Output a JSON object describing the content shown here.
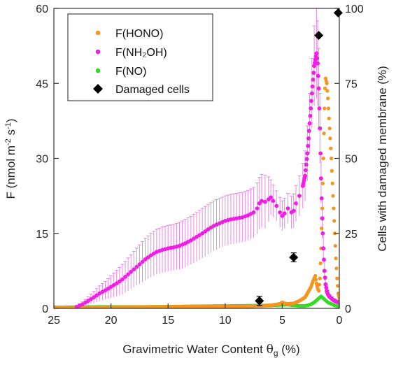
{
  "chart_data": {
    "type": "scatter",
    "xlabel": {
      "main": "Gravimetric Water Content ",
      "sym": "θ",
      "sub": "g",
      "unit": " (%)"
    },
    "ylabel": {
      "pre": "F (nmol m",
      "sup1": "-2",
      "mid": " s",
      "sup2": "-1",
      "post": ")"
    },
    "y2label": "Cells with damaged membrane (%)",
    "xlim": [
      25,
      0
    ],
    "ylim": [
      0,
      60
    ],
    "y2lim": [
      0,
      100
    ],
    "x_ticks": [
      "25",
      "20",
      "15",
      "10",
      "5",
      "0"
    ],
    "x_tick_values": [
      25,
      20,
      15,
      10,
      5,
      0
    ],
    "y_ticks": [
      "0",
      "15",
      "30",
      "45",
      "60"
    ],
    "y_tick_values": [
      0,
      15,
      30,
      45,
      60
    ],
    "y2_ticks": [
      "0",
      "25",
      "50",
      "75",
      "100"
    ],
    "y2_tick_values": [
      0,
      25,
      50,
      75,
      100
    ],
    "legend_position": "top-left",
    "colors": {
      "hono": "#f7941d",
      "nh2oh": "#ee1ee5",
      "no": "#33dd22",
      "damaged": "#000000",
      "nh2oh_err": "#e58ae0"
    },
    "series": [
      {
        "id": "hono",
        "label": "F(HONO)",
        "x": [
          25,
          22,
          19,
          16,
          13,
          10,
          8,
          7,
          6,
          5.2,
          5,
          4.8,
          4.5,
          4,
          3.5,
          3,
          2.8,
          2.5,
          2.3,
          2.1,
          2,
          1.9,
          1.8,
          1.7,
          1.6,
          1.5,
          1.4,
          1.3,
          1.25,
          1.2,
          1.1,
          1.0,
          0.9,
          0.8,
          0.7,
          0.6,
          0.5,
          0.4,
          0.3,
          0.2,
          0.1,
          0
        ],
        "y": [
          0.2,
          0.2,
          0.25,
          0.3,
          0.35,
          0.4,
          0.45,
          0.5,
          0.6,
          0.9,
          1.2,
          1.0,
          0.9,
          1.0,
          1.5,
          2.2,
          3.0,
          4.2,
          5.5,
          6.5,
          5.0,
          4.0,
          3.5,
          6.0,
          12.0,
          20.0,
          30.0,
          40.0,
          44.0,
          46.0,
          45.0,
          42.0,
          38.0,
          34.0,
          30.0,
          25.0,
          20.0,
          15.0,
          10.0,
          6.0,
          3.0,
          2.0
        ]
      },
      {
        "id": "nh2oh",
        "label": "F(NH₂OH)",
        "x": [
          23,
          22.5,
          22,
          21.5,
          21,
          20.5,
          20,
          19.5,
          19,
          18.5,
          18,
          17.5,
          17,
          16.5,
          16,
          15.5,
          15,
          14.5,
          14,
          13.5,
          13,
          12.5,
          12,
          11.5,
          11,
          10.5,
          10,
          9.5,
          9,
          8.5,
          8,
          7.5,
          7.2,
          7,
          6.8,
          6.5,
          6.2,
          6,
          5.8,
          5.5,
          5.2,
          5,
          4.8,
          4.5,
          4.2,
          4,
          3.8,
          3.5,
          3.2,
          3,
          2.8,
          2.6,
          2.4,
          2.2,
          2,
          1.9,
          1.8,
          1.7,
          1.6,
          1.5,
          1.4,
          1.3,
          1.2,
          1.1,
          1.0,
          0.8,
          0.6,
          0.4,
          0.2,
          0
        ],
        "y": [
          0.3,
          0.8,
          1.5,
          2.2,
          3.0,
          3.6,
          4.3,
          5.0,
          5.8,
          6.8,
          7.8,
          8.8,
          9.8,
          10.6,
          11.3,
          11.7,
          12.0,
          12.2,
          12.5,
          13.0,
          13.6,
          14.3,
          15.0,
          15.8,
          16.5,
          17.0,
          17.5,
          17.8,
          18.0,
          18.2,
          18.6,
          19.2,
          20.0,
          21.0,
          21.5,
          21.3,
          21.8,
          22.2,
          21.5,
          20.5,
          19.2,
          18.5,
          19.0,
          20.0,
          19.2,
          19.5,
          21.0,
          22.5,
          24.5,
          26.5,
          31.0,
          37.0,
          43.0,
          48.5,
          51.0,
          49.0,
          44.0,
          36.0,
          26.0,
          18.0,
          12.0,
          7.5,
          4.8,
          3.5,
          2.8,
          2.2,
          1.8,
          1.5,
          1.3,
          1.2
        ],
        "err": [
          0.3,
          0.5,
          0.8,
          1.2,
          1.5,
          1.8,
          2.2,
          2.6,
          3.0,
          3.3,
          3.6,
          3.9,
          4.2,
          4.4,
          4.5,
          4.6,
          4.6,
          4.6,
          4.7,
          4.8,
          4.8,
          4.9,
          5.0,
          5.0,
          5.0,
          5.0,
          5.0,
          5.0,
          5.0,
          5.0,
          5.0,
          5.0,
          5.1,
          5.2,
          5.3,
          5.3,
          4.5,
          3.5,
          3.2,
          3.0,
          3.0,
          3.0,
          3.0,
          3.0,
          3.2,
          3.4,
          3.6,
          4.0,
          4.5,
          5.0,
          5.5,
          6.0,
          7.0,
          8.0,
          9.0,
          8.5,
          8.0,
          7.0,
          5.0,
          4.0,
          3.0,
          2.0,
          1.5,
          1.0,
          0.8,
          0.6,
          0.5,
          0.4,
          0.3,
          0.3
        ]
      },
      {
        "id": "no",
        "label": "F(NO)",
        "x": [
          25,
          23,
          21,
          19,
          17,
          15,
          13,
          11,
          9,
          7,
          6,
          5,
          4.5,
          4,
          3.5,
          3,
          2.8,
          2.5,
          2.2,
          2,
          1.8,
          1.6,
          1.4,
          1.2,
          1.0,
          0.8,
          0.6,
          0.4,
          0.2,
          0
        ],
        "y": [
          0.2,
          0.25,
          0.3,
          0.3,
          0.3,
          0.35,
          0.4,
          0.45,
          0.5,
          0.55,
          0.6,
          0.7,
          0.75,
          0.6,
          0.5,
          0.5,
          0.6,
          0.8,
          1.2,
          1.6,
          2.0,
          2.4,
          2.0,
          1.6,
          1.2,
          1.0,
          0.8,
          0.6,
          0.5,
          0.4
        ]
      },
      {
        "id": "damaged",
        "label": "Damaged cells",
        "axis": "right",
        "x": [
          7.0,
          4.0,
          1.8,
          0.1
        ],
        "y": [
          2.5,
          17.0,
          91.0,
          98.5
        ],
        "err": [
          1.5,
          1.5,
          0,
          0
        ]
      }
    ]
  }
}
